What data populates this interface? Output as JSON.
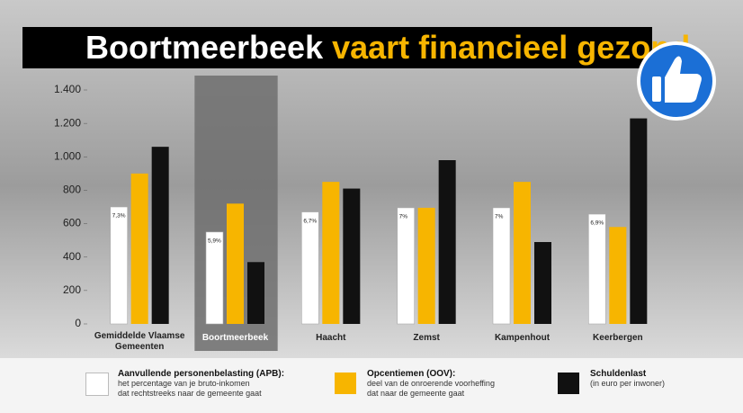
{
  "chart_data": {
    "type": "bar",
    "title": {
      "highlight": "Boortmeerbeek",
      "rest": "vaart financieel gezond"
    },
    "categories": [
      "Gemiddelde Vlaamse Gemeenten",
      "Boortmeerbeek",
      "Haacht",
      "Zemst",
      "Kampenhout",
      "Keerbergen"
    ],
    "highlight_category": 1,
    "series": [
      {
        "name": "Aanvullende personenbelasting (APB):",
        "description": [
          "het percentage van je bruto-inkomen",
          "dat rechtstreeks naar de gemeente gaat"
        ],
        "color": "#ffffff",
        "values": [
          700,
          550,
          670,
          695,
          695,
          657
        ],
        "percent_labels": [
          "7,3%",
          "5,9%",
          "6,7%",
          "7%",
          "7%",
          "6,9%"
        ]
      },
      {
        "name": "Opcentiemen (OOV):",
        "description": [
          "deel van de onroerende voorheffing",
          "dat naar de gemeente gaat"
        ],
        "color": "#f7b500",
        "values": [
          900,
          720,
          850,
          695,
          850,
          580
        ]
      },
      {
        "name": "Schuldenlast",
        "description": [
          "(in euro per inwoner)"
        ],
        "color": "#111111",
        "values": [
          1060,
          370,
          810,
          980,
          490,
          1230
        ]
      }
    ],
    "ylim": [
      0,
      1400
    ],
    "yticks": [
      0,
      200,
      400,
      600,
      800,
      {
        "value": 1000,
        "label": "1.000"
      },
      {
        "value": 1200,
        "label": "1.200"
      },
      {
        "value": 1400,
        "label": "1.400"
      }
    ],
    "grid": false
  }
}
